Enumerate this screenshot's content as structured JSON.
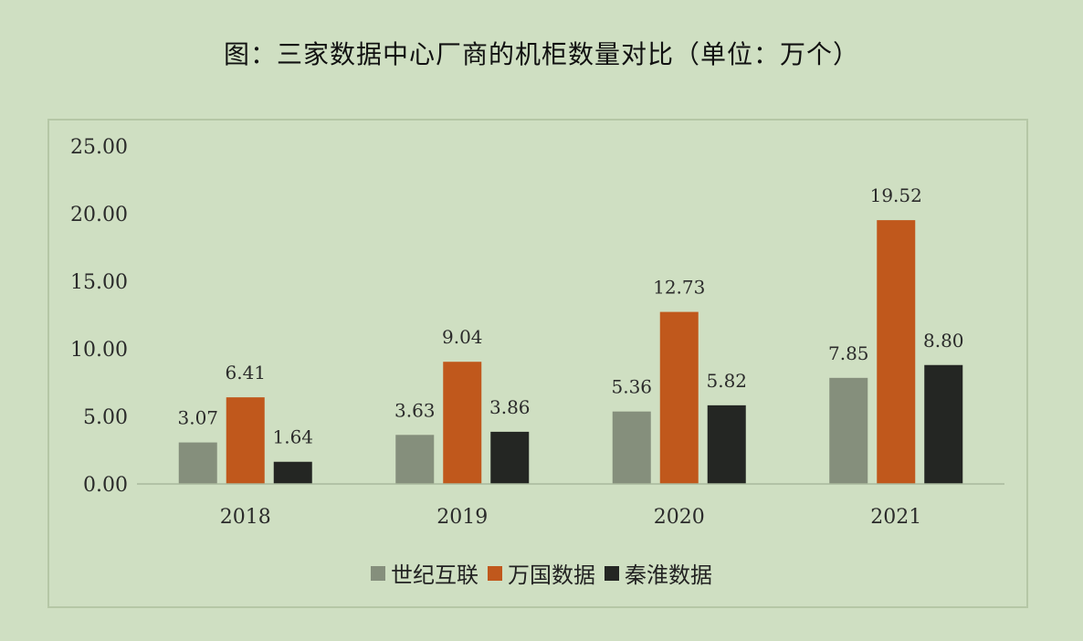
{
  "title": "图：三家数据中心厂商的机柜数量对比（单位：万个）",
  "colors": {
    "background": "#cfdfc2",
    "series": [
      "#858f7c",
      "#c0581c",
      "#242623"
    ],
    "axis": "#a9b99c"
  },
  "chart_data": {
    "type": "bar",
    "title": "图：三家数据中心厂商的机柜数量对比（单位：万个）",
    "categories": [
      "2018",
      "2019",
      "2020",
      "2021"
    ],
    "series": [
      {
        "name": "世纪互联",
        "values": [
          3.07,
          3.63,
          5.36,
          7.85
        ]
      },
      {
        "name": "万国数据",
        "values": [
          6.41,
          9.04,
          12.73,
          19.52
        ]
      },
      {
        "name": "秦淮数据",
        "values": [
          1.64,
          3.86,
          5.82,
          8.8
        ]
      }
    ],
    "data_labels": [
      [
        "3.07",
        "3.63",
        "5.36",
        "7.85"
      ],
      [
        "6.41",
        "9.04",
        "12.73",
        "19.52"
      ],
      [
        "1.64",
        "3.86",
        "5.82",
        "8.80"
      ]
    ],
    "ylim": [
      0,
      25
    ],
    "yticks": [
      "0.00",
      "5.00",
      "10.00",
      "15.00",
      "20.00",
      "25.00"
    ],
    "ytick_values": [
      0,
      5,
      10,
      15,
      20,
      25
    ],
    "grid": false,
    "legend_position": "bottom"
  }
}
